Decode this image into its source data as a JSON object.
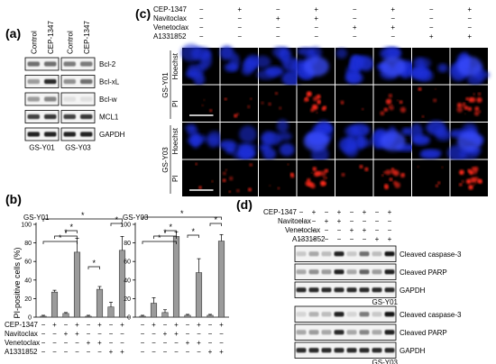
{
  "panel_a": {
    "label": "(a)",
    "columns": [
      "Control",
      "CEP-1347",
      "Control",
      "CEP-1347"
    ],
    "proteins": [
      "Bcl-2",
      "Bcl-xL",
      "Bcl-w",
      "MCL1",
      "GAPDH"
    ],
    "cell_lines": [
      "GS-Y01",
      "GS-Y03"
    ],
    "band_intensity": [
      [
        [
          0.55,
          0.55
        ],
        [
          0.5,
          0.5
        ]
      ],
      [
        [
          0.35,
          0.85
        ],
        [
          0.4,
          0.55
        ]
      ],
      [
        [
          0.35,
          0.45
        ],
        [
          0.05,
          0.05
        ]
      ],
      [
        [
          0.75,
          0.8
        ],
        [
          0.75,
          0.8
        ]
      ],
      [
        [
          0.9,
          0.9
        ],
        [
          0.9,
          0.9
        ]
      ]
    ]
  },
  "panel_b": {
    "label": "(b)",
    "ylabel": "PI-positive cells (%)",
    "yticks": [
      "0",
      "20",
      "40",
      "60",
      "80",
      "100"
    ],
    "row_labels": [
      "CEP-1347",
      "Navitoclax",
      "Venetoclax",
      "A1331852"
    ],
    "sig_mark": "*",
    "chart_data": [
      {
        "type": "bar",
        "title": "GS-Y01",
        "ylim": [
          0,
          100
        ],
        "values": [
          1,
          27,
          4,
          70,
          1,
          30,
          11,
          72
        ],
        "errors": [
          1,
          2,
          1,
          15,
          1,
          3,
          5,
          15
        ],
        "treatment_rows": [
          [
            "−",
            "+",
            "−",
            "+",
            "−",
            "+",
            "−",
            "+"
          ],
          [
            "−",
            "−",
            "+",
            "+",
            "−",
            "−",
            "−",
            "−"
          ],
          [
            "−",
            "−",
            "−",
            "−",
            "+",
            "+",
            "−",
            "−"
          ],
          [
            "−",
            "−",
            "−",
            "−",
            "−",
            "−",
            "+",
            "+"
          ]
        ]
      },
      {
        "type": "bar",
        "title": "GS-Y03",
        "ylim": [
          0,
          100
        ],
        "values": [
          1,
          15,
          5,
          87,
          2,
          48,
          2,
          82
        ],
        "errors": [
          1,
          6,
          3,
          5,
          1,
          15,
          1,
          7
        ],
        "treatment_rows": [
          [
            "−",
            "+",
            "−",
            "+",
            "−",
            "+",
            "−",
            "+"
          ],
          [
            "−",
            "−",
            "+",
            "+",
            "−",
            "−",
            "−",
            "−"
          ],
          [
            "−",
            "−",
            "−",
            "−",
            "+",
            "+",
            "−",
            "−"
          ],
          [
            "−",
            "−",
            "−",
            "−",
            "−",
            "−",
            "+",
            "+"
          ]
        ]
      }
    ]
  },
  "panel_c": {
    "label": "(c)",
    "row_labels": [
      "CEP-1347",
      "Navitoclax",
      "Venetoclax",
      "A1331852"
    ],
    "rows": [
      [
        "−",
        "+",
        "−",
        "+",
        "−",
        "+",
        "−",
        "+"
      ],
      [
        "−",
        "−",
        "+",
        "+",
        "−",
        "−",
        "−",
        "−"
      ],
      [
        "−",
        "−",
        "−",
        "−",
        "+",
        "+",
        "−",
        "−"
      ],
      [
        "−",
        "−",
        "−",
        "−",
        "−",
        "−",
        "+",
        "+"
      ]
    ],
    "cell_lines": [
      "GS-Y01",
      "GS-Y03"
    ],
    "stains": [
      "Hoechst",
      "PI"
    ],
    "pi_intensity": [
      [
        0.05,
        0.2,
        0.1,
        0.9,
        0.05,
        0.55,
        0.15,
        0.9
      ],
      [
        0.05,
        0.35,
        0.2,
        0.95,
        0.05,
        0.7,
        0.1,
        0.95
      ]
    ],
    "hoechst_color": "#1f2fd8",
    "pi_color": "#ff2a1a"
  },
  "panel_d": {
    "label": "(d)",
    "row_labels": [
      "CEP-1347",
      "Navitoclax",
      "Venetoclax",
      "A1331852"
    ],
    "rows": [
      [
        "−",
        "+",
        "−",
        "+",
        "−",
        "+",
        "−",
        "+"
      ],
      [
        "−",
        "−",
        "+",
        "+",
        "−",
        "−",
        "−",
        "−"
      ],
      [
        "−",
        "−",
        "−",
        "−",
        "+",
        "+",
        "−",
        "−"
      ],
      [
        "−",
        "−",
        "−",
        "−",
        "−",
        "−",
        "+",
        "+"
      ]
    ],
    "proteins": [
      "Cleaved caspase-3",
      "Cleaved PARP",
      "GAPDH"
    ],
    "cell_lines": [
      "GS-Y01",
      "GS-Y03"
    ],
    "band_intensity": [
      [
        [
          0.15,
          0.3,
          0.2,
          0.9,
          0.15,
          0.55,
          0.2,
          0.95
        ],
        [
          0.3,
          0.4,
          0.35,
          0.9,
          0.3,
          0.6,
          0.35,
          0.9
        ],
        [
          0.85,
          0.85,
          0.85,
          0.85,
          0.85,
          0.85,
          0.85,
          0.85
        ]
      ],
      [
        [
          0.1,
          0.25,
          0.2,
          0.9,
          0.1,
          0.5,
          0.15,
          0.95
        ],
        [
          0.3,
          0.35,
          0.3,
          0.85,
          0.3,
          0.45,
          0.3,
          0.9
        ],
        [
          0.85,
          0.85,
          0.85,
          0.85,
          0.85,
          0.85,
          0.85,
          0.85
        ]
      ]
    ]
  }
}
